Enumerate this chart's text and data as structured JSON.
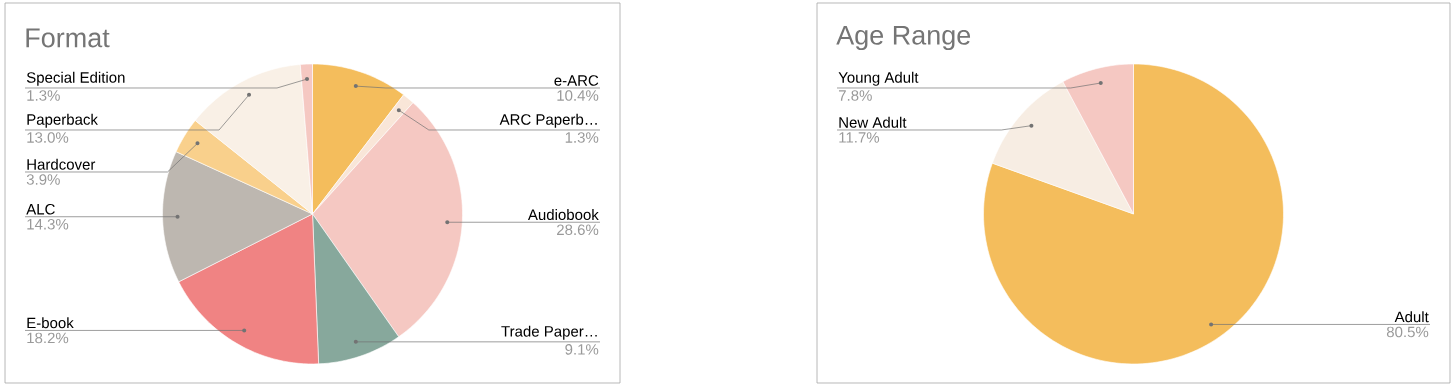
{
  "chart_data": [
    {
      "type": "pie",
      "title": "Format",
      "categories": [
        "e-ARC",
        "ARC Paperb…",
        "Audiobook",
        "Trade Paper…",
        "E-book",
        "ALC",
        "Hardcover",
        "Paperback",
        "Special Edition"
      ],
      "values": [
        10.4,
        1.3,
        28.6,
        9.1,
        18.2,
        14.3,
        3.9,
        13.0,
        1.3
      ],
      "value_labels": [
        "10.4%",
        "1.3%",
        "28.6%",
        "9.1%",
        "18.2%",
        "14.3%",
        "3.9%",
        "13.0%",
        "1.3%"
      ],
      "colors": [
        "#f4bd5c",
        "#f9e6d8",
        "#f5c8c2",
        "#87a89c",
        "#f08383",
        "#bdb7b0",
        "#f9d08c",
        "#f9f0e6",
        "#f5c8c2"
      ]
    },
    {
      "type": "pie",
      "title": "Age Range",
      "categories": [
        "Adult",
        "New Adult",
        "Young Adult"
      ],
      "values": [
        80.5,
        11.7,
        7.8
      ],
      "value_labels": [
        "80.5%",
        "11.7%",
        "7.8%"
      ],
      "colors": [
        "#f4bd5c",
        "#f7ede3",
        "#f5c8c2"
      ]
    }
  ]
}
